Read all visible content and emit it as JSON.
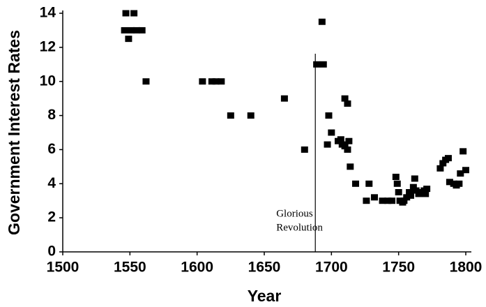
{
  "chart_data": {
    "type": "scatter",
    "xlabel": "Year",
    "ylabel": "Government Interest Rates",
    "xlim": [
      1500,
      1800
    ],
    "xticks": [
      1500,
      1550,
      1600,
      1650,
      1700,
      1750,
      1800
    ],
    "ylim": [
      0,
      14
    ],
    "yticks": [
      0,
      2,
      4,
      6,
      8,
      10,
      12,
      14
    ],
    "color": "#000000",
    "grid": false,
    "annotation": {
      "x": 1688,
      "lines": [
        "Glorious",
        "Revolution"
      ]
    },
    "x": [
      1547,
      1553,
      1546,
      1549,
      1551,
      1555,
      1559,
      1562,
      1604,
      1611,
      1614,
      1618,
      1625,
      1640,
      1665,
      1680,
      1689,
      1693,
      1694,
      1697,
      1698,
      1700,
      1705,
      1707,
      1708,
      1710,
      1710,
      1712,
      1712,
      1713,
      1714,
      1718,
      1726,
      1728,
      1732,
      1738,
      1742,
      1745,
      1748,
      1749,
      1750,
      1751,
      1753,
      1754,
      1756,
      1758,
      1759,
      1761,
      1762,
      1763,
      1765,
      1767,
      1769,
      1770,
      1771,
      1781,
      1783,
      1785,
      1787,
      1788,
      1791,
      1793,
      1795,
      1796,
      1798,
      1800
    ],
    "y": [
      14,
      14,
      13,
      12.5,
      13,
      13,
      13,
      10,
      10,
      10,
      10,
      10,
      8,
      8,
      9,
      6,
      11,
      13.5,
      11,
      6.3,
      8,
      7,
      6.5,
      6.6,
      6.3,
      6.2,
      9,
      8.7,
      6,
      6.5,
      5,
      4,
      3,
      4,
      3.2,
      3,
      3,
      3,
      4.4,
      4,
      3.5,
      3,
      2.9,
      3,
      3.2,
      3.5,
      3.3,
      3.8,
      4.3,
      3.6,
      3.4,
      3.5,
      3.6,
      3.4,
      3.7,
      4.9,
      5.2,
      5.4,
      5.5,
      4.1,
      4,
      3.9,
      4,
      4.6,
      5.9,
      4.8
    ]
  }
}
